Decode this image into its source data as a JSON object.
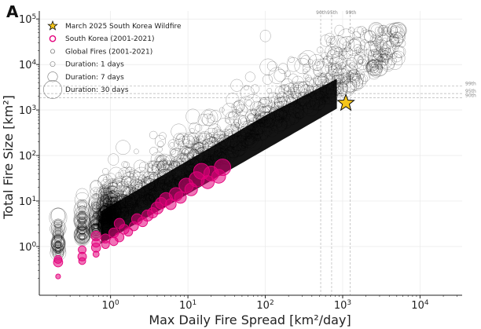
{
  "panel_label": "A",
  "chart_data": {
    "type": "scatter",
    "xlabel": "Max Daily Fire Spread [km²/day]",
    "ylabel": "Total Fire Size [km²]",
    "xscale": "log",
    "yscale": "log",
    "xlim": [
      0.12,
      35000
    ],
    "ylim": [
      0.085,
      150000
    ],
    "x_ticks": [
      {
        "value": 1,
        "base": "10",
        "exp": "0"
      },
      {
        "value": 10,
        "base": "10",
        "exp": "1"
      },
      {
        "value": 100,
        "base": "10",
        "exp": "2"
      },
      {
        "value": 1000,
        "base": "10",
        "exp": "3"
      },
      {
        "value": 10000,
        "base": "10",
        "exp": "4"
      }
    ],
    "y_ticks": [
      {
        "value": 1,
        "base": "10",
        "exp": "0"
      },
      {
        "value": 10,
        "base": "10",
        "exp": "1"
      },
      {
        "value": 100,
        "base": "10",
        "exp": "2"
      },
      {
        "value": 1000,
        "base": "10",
        "exp": "3"
      },
      {
        "value": 10000,
        "base": "10",
        "exp": "4"
      },
      {
        "value": 100000,
        "base": "10",
        "exp": "5"
      }
    ],
    "x_percentiles": [
      {
        "label": "90th",
        "value": 520
      },
      {
        "label": "95th",
        "value": 720
      },
      {
        "label": "99th",
        "value": 1250
      }
    ],
    "y_percentiles": [
      {
        "label": "99th",
        "value": 3400
      },
      {
        "label": "95th",
        "value": 2300
      },
      {
        "label": "90th",
        "value": 1850
      }
    ],
    "legend_position": "upper-left",
    "legend": [
      {
        "label": "March 2025 South Korea Wildfire",
        "marker": "star",
        "color": "#f5c518"
      },
      {
        "label": "South Korea (2001-2021)",
        "marker": "circle",
        "color": "#e4007c"
      },
      {
        "label": "Global Fires (2001-2021)",
        "marker": "circle",
        "color": "#555555"
      },
      {
        "label": "Duration: 1 days",
        "marker": "size",
        "days": 1
      },
      {
        "label": "Duration: 7 days",
        "marker": "size",
        "days": 7
      },
      {
        "label": "Duration: 30 days",
        "marker": "size",
        "days": 30
      }
    ],
    "highlight": {
      "name": "March 2025 South Korea Wildfire",
      "x": 1100,
      "y": 1420
    },
    "series": [
      {
        "name": "South Korea (2001-2021)",
        "color": "#e4007c",
        "points": [
          {
            "x": 0.21,
            "y": 0.22,
            "d": 1
          },
          {
            "x": 0.21,
            "y": 0.45,
            "d": 6
          },
          {
            "x": 0.21,
            "y": 0.52,
            "d": 4
          },
          {
            "x": 0.43,
            "y": 0.48,
            "d": 3
          },
          {
            "x": 0.43,
            "y": 0.6,
            "d": 5
          },
          {
            "x": 0.43,
            "y": 0.85,
            "d": 4
          },
          {
            "x": 0.65,
            "y": 0.68,
            "d": 2
          },
          {
            "x": 0.65,
            "y": 0.95,
            "d": 6
          },
          {
            "x": 0.65,
            "y": 1.2,
            "d": 5
          },
          {
            "x": 0.65,
            "y": 1.7,
            "d": 7
          },
          {
            "x": 0.86,
            "y": 1.1,
            "d": 4
          },
          {
            "x": 0.86,
            "y": 1.5,
            "d": 6
          },
          {
            "x": 1.1,
            "y": 1.3,
            "d": 5
          },
          {
            "x": 1.1,
            "y": 2.0,
            "d": 7
          },
          {
            "x": 1.3,
            "y": 1.6,
            "d": 6
          },
          {
            "x": 1.3,
            "y": 3.2,
            "d": 8
          },
          {
            "x": 1.5,
            "y": 2.4,
            "d": 7
          },
          {
            "x": 1.7,
            "y": 2.1,
            "d": 5
          },
          {
            "x": 2.0,
            "y": 2.8,
            "d": 6
          },
          {
            "x": 2.2,
            "y": 4.0,
            "d": 9
          },
          {
            "x": 2.6,
            "y": 3.5,
            "d": 7
          },
          {
            "x": 3.0,
            "y": 4.8,
            "d": 10
          },
          {
            "x": 3.5,
            "y": 5.5,
            "d": 8
          },
          {
            "x": 4.0,
            "y": 7.0,
            "d": 12
          },
          {
            "x": 4.5,
            "y": 9.0,
            "d": 10
          },
          {
            "x": 5.2,
            "y": 11.0,
            "d": 14
          },
          {
            "x": 6.0,
            "y": 8.5,
            "d": 9
          },
          {
            "x": 7.0,
            "y": 14.0,
            "d": 15
          },
          {
            "x": 8.0,
            "y": 12.0,
            "d": 11
          },
          {
            "x": 9.5,
            "y": 22.0,
            "d": 18
          },
          {
            "x": 11.0,
            "y": 18.0,
            "d": 13
          },
          {
            "x": 13.0,
            "y": 30.0,
            "d": 20
          },
          {
            "x": 15.0,
            "y": 45.0,
            "d": 22
          },
          {
            "x": 18.0,
            "y": 26.0,
            "d": 14
          },
          {
            "x": 20.0,
            "y": 40.0,
            "d": 19
          },
          {
            "x": 25.0,
            "y": 35.0,
            "d": 16
          },
          {
            "x": 28.0,
            "y": 55.0,
            "d": 24
          }
        ]
      }
    ]
  }
}
